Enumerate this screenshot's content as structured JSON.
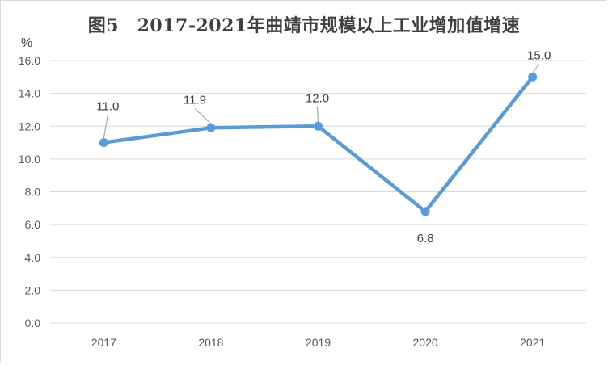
{
  "chart_data": {
    "type": "line",
    "title": "图5　2017-2021年曲靖市规模以上工业增加值增速",
    "ylabel": "%",
    "xlabel": "",
    "categories": [
      "2017",
      "2018",
      "2019",
      "2020",
      "2021"
    ],
    "series": [
      {
        "values": [
          11.0,
          11.9,
          12.0,
          6.8,
          15.0
        ]
      }
    ],
    "data_labels": [
      "11.0",
      "11.9",
      "12.0",
      "6.8",
      "15.0"
    ],
    "yticks": [
      "0.0",
      "2.0",
      "4.0",
      "6.0",
      "8.0",
      "10.0",
      "12.0",
      "14.0",
      "16.0"
    ],
    "ylim": [
      0,
      16
    ],
    "grid": true,
    "line_color": "#5b9bd5",
    "legend": "none"
  }
}
